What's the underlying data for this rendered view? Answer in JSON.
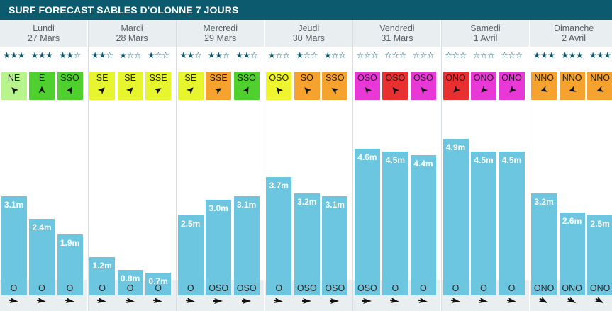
{
  "title": "SURF FORECAST SABLES D'OLONNE 7 JOURS",
  "colors": {
    "header_bg": "#0b5a6e",
    "wave_bar": "#6cc6df",
    "day_header_bg": "#e9eef0",
    "star": "#0b5a6e",
    "wind_NE": "#b7f58c",
    "wind_E": "#4fd02e",
    "wind_SSO": "#4fd02e",
    "wind_SE": "#e6f52e",
    "wind_SSE": "#e6f52e",
    "wind_SSE_orange": "#f5a32e",
    "wind_OSO_yellow": "#eef52e",
    "wind_SO_orange": "#f5a32e",
    "wind_OSO_magenta": "#e838d6",
    "wind_OSO_red": "#e83030",
    "wind_ONO_red": "#e83030",
    "wind_ONO_magenta": "#e838d6",
    "wind_NNO_orange": "#f5a32e"
  },
  "chart_data": {
    "type": "bar",
    "title": "SURF FORECAST SABLES D'OLONNE 7 JOURS",
    "unit": "m",
    "ylim": [
      0,
      6
    ],
    "days": [
      {
        "name": "Lundi",
        "date": "27 Mars",
        "slots": [
          {
            "stars": 3,
            "wind": "NE",
            "wind_color": "#b7f58c",
            "wind_arrow_deg": 225,
            "wave": 3.1,
            "wave_label": "3.1m",
            "swell_dir": "O",
            "swell_arrow_deg": 90
          },
          {
            "stars": 3,
            "wind": "E",
            "wind_color": "#4fd02e",
            "wind_arrow_deg": 270,
            "wave": 2.4,
            "wave_label": "2.4m",
            "swell_dir": "O",
            "swell_arrow_deg": 90
          },
          {
            "stars": 2,
            "wind": "SSO",
            "wind_color": "#4fd02e",
            "wind_arrow_deg": 300,
            "wave": 1.9,
            "wave_label": "1.9m",
            "swell_dir": "O",
            "swell_arrow_deg": 90
          }
        ]
      },
      {
        "name": "Mardi",
        "date": "28 Mars",
        "slots": [
          {
            "stars": 2,
            "wind": "SE",
            "wind_color": "#e6f52e",
            "wind_arrow_deg": 315,
            "wave": 1.2,
            "wave_label": "1.2m",
            "swell_dir": "O",
            "swell_arrow_deg": 90
          },
          {
            "stars": 1,
            "wind": "SE",
            "wind_color": "#e6f52e",
            "wind_arrow_deg": 315,
            "wave": 0.8,
            "wave_label": "0.8m",
            "swell_dir": "O",
            "swell_arrow_deg": 90
          },
          {
            "stars": 1,
            "wind": "SSE",
            "wind_color": "#e6f52e",
            "wind_arrow_deg": 330,
            "wave": 0.7,
            "wave_label": "0.7m",
            "swell_dir": "O",
            "swell_arrow_deg": 90
          }
        ]
      },
      {
        "name": "Mercredi",
        "date": "29 Mars",
        "slots": [
          {
            "stars": 2,
            "wind": "SE",
            "wind_color": "#e6f52e",
            "wind_arrow_deg": 315,
            "wave": 2.5,
            "wave_label": "2.5m",
            "swell_dir": "O",
            "swell_arrow_deg": 90
          },
          {
            "stars": 2,
            "wind": "SSE",
            "wind_color": "#f5a32e",
            "wind_arrow_deg": 330,
            "wave": 3.0,
            "wave_label": "3.0m",
            "swell_dir": "OSO",
            "swell_arrow_deg": 70
          },
          {
            "stars": 2,
            "wind": "SSO",
            "wind_color": "#4fd02e",
            "wind_arrow_deg": 300,
            "wave": 3.1,
            "wave_label": "3.1m",
            "swell_dir": "OSO",
            "swell_arrow_deg": 70
          }
        ]
      },
      {
        "name": "Jeudi",
        "date": "30 Mars",
        "slots": [
          {
            "stars": 1,
            "wind": "OSO",
            "wind_color": "#eef52e",
            "wind_arrow_deg": 230,
            "wave": 3.7,
            "wave_label": "3.7m",
            "swell_dir": "O",
            "swell_arrow_deg": 90
          },
          {
            "stars": 1,
            "wind": "SO",
            "wind_color": "#f5a32e",
            "wind_arrow_deg": 225,
            "wave": 3.2,
            "wave_label": "3.2m",
            "swell_dir": "OSO",
            "swell_arrow_deg": 70
          },
          {
            "stars": 1,
            "wind": "SSO",
            "wind_color": "#f5a32e",
            "wind_arrow_deg": 210,
            "wave": 3.1,
            "wave_label": "3.1m",
            "swell_dir": "OSO",
            "swell_arrow_deg": 70
          }
        ]
      },
      {
        "name": "Vendredi",
        "date": "31 Mars",
        "slots": [
          {
            "stars": 0,
            "wind": "OSO",
            "wind_color": "#e838d6",
            "wind_arrow_deg": 230,
            "wave": 4.6,
            "wave_label": "4.6m",
            "swell_dir": "OSO",
            "swell_arrow_deg": 70
          },
          {
            "stars": 0,
            "wind": "OSO",
            "wind_color": "#e83030",
            "wind_arrow_deg": 230,
            "wave": 4.5,
            "wave_label": "4.5m",
            "swell_dir": "O",
            "swell_arrow_deg": 90
          },
          {
            "stars": 0,
            "wind": "OSO",
            "wind_color": "#e838d6",
            "wind_arrow_deg": 230,
            "wave": 4.4,
            "wave_label": "4.4m",
            "swell_dir": "O",
            "swell_arrow_deg": 90
          }
        ]
      },
      {
        "name": "Samedi",
        "date": "1 Avril",
        "slots": [
          {
            "stars": 0,
            "wind": "ONO",
            "wind_color": "#e83030",
            "wind_arrow_deg": 135,
            "wave": 4.9,
            "wave_label": "4.9m",
            "swell_dir": "O",
            "swell_arrow_deg": 90
          },
          {
            "stars": 0,
            "wind": "ONO",
            "wind_color": "#e838d6",
            "wind_arrow_deg": 135,
            "wave": 4.5,
            "wave_label": "4.5m",
            "swell_dir": "O",
            "swell_arrow_deg": 90
          },
          {
            "stars": 0,
            "wind": "ONO",
            "wind_color": "#e838d6",
            "wind_arrow_deg": 135,
            "wave": 4.5,
            "wave_label": "4.5m",
            "swell_dir": "O",
            "swell_arrow_deg": 90
          }
        ]
      },
      {
        "name": "Dimanche",
        "date": "2 Avril",
        "slots": [
          {
            "stars": 3,
            "wind": "NNO",
            "wind_color": "#f5a32e",
            "wind_arrow_deg": 160,
            "wave": 3.2,
            "wave_label": "3.2m",
            "swell_dir": "ONO",
            "swell_arrow_deg": 110
          },
          {
            "stars": 3,
            "wind": "NNO",
            "wind_color": "#f5a32e",
            "wind_arrow_deg": 160,
            "wave": 2.6,
            "wave_label": "2.6m",
            "swell_dir": "ONO",
            "swell_arrow_deg": 110
          },
          {
            "stars": 3,
            "wind": "NNO",
            "wind_color": "#f5a32e",
            "wind_arrow_deg": 160,
            "wave": 2.5,
            "wave_label": "2.5m",
            "swell_dir": "ONO",
            "swell_arrow_deg": 110
          }
        ]
      }
    ]
  }
}
